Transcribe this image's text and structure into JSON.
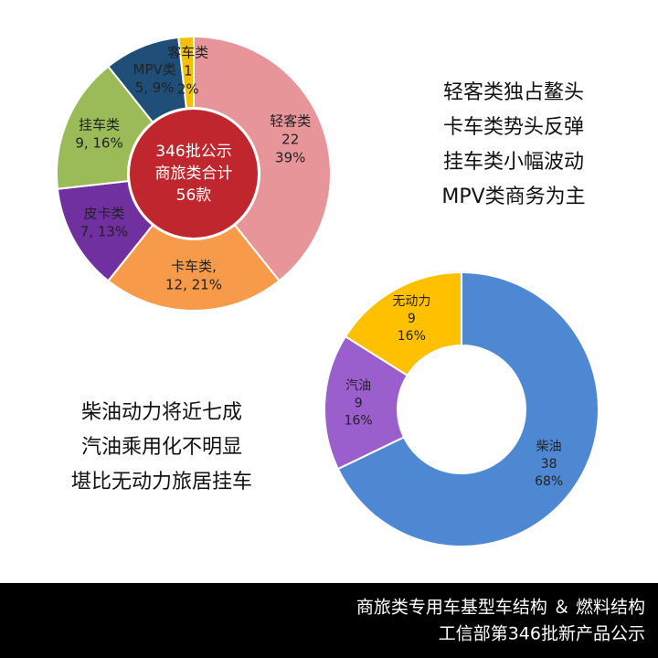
{
  "chart_data": [
    {
      "type": "donut",
      "categories": [
        "轻客类",
        "卡车类,",
        "皮卡类",
        "挂车类",
        "MPV类",
        "客车类"
      ],
      "values": [
        22,
        12,
        7,
        9,
        5,
        1
      ],
      "value_labels": [
        [
          "22",
          "39%"
        ],
        [
          "12, 21%"
        ],
        [
          "7, 13%"
        ],
        [
          "9, 16%"
        ],
        [
          "5, 9%"
        ],
        [
          "1",
          "2%"
        ]
      ],
      "colors": [
        "#e8959a",
        "#f79a4a",
        "#7030a0",
        "#9bbb59",
        "#1f4e79",
        "#f5c000"
      ],
      "center_labels": [
        "346批公示",
        "商旅类合计",
        "56款"
      ],
      "center_color": "#c0262d",
      "annotations": [
        "轻客类独占鳌头",
        "卡车类势头反弹",
        "挂车类小幅波动",
        "MPV类商务为主"
      ]
    },
    {
      "type": "donut",
      "categories": [
        "柴油",
        "汽油",
        "无动力"
      ],
      "values": [
        38,
        9,
        9
      ],
      "value_labels": [
        [
          "38",
          "68%"
        ],
        [
          "9",
          "16%"
        ],
        [
          "9",
          "16%"
        ]
      ],
      "colors": [
        "#4f88d2",
        "#9a5fcc",
        "#ffc000"
      ],
      "annotations": [
        "柴油动力将近七成",
        "汽油乘用化不明显",
        "堪比无动力旅居挂车"
      ]
    }
  ],
  "footer": [
    "商旅类专用车基型车结构 ＆ 燃料结构",
    "工信部第346批新产品公示"
  ]
}
